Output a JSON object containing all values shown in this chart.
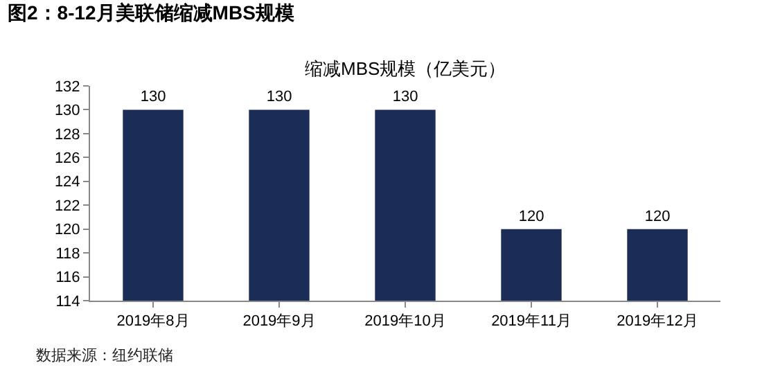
{
  "chart_data": {
    "type": "bar",
    "title": "图2：8-12月美联储缩减MBS规模",
    "subtitle": "缩减MBS规模（亿美元）",
    "categories": [
      "2019年8月",
      "2019年9月",
      "2019年10月",
      "2019年11月",
      "2019年12月"
    ],
    "values": [
      130,
      130,
      130,
      120,
      120
    ],
    "color": "#1b2c56",
    "ylim": [
      114,
      132
    ],
    "yticks": [
      114,
      116,
      118,
      120,
      122,
      124,
      126,
      128,
      130,
      132
    ],
    "grid": false,
    "data_labels": true,
    "annotations": [
      "数据来源：纽约联储"
    ]
  }
}
